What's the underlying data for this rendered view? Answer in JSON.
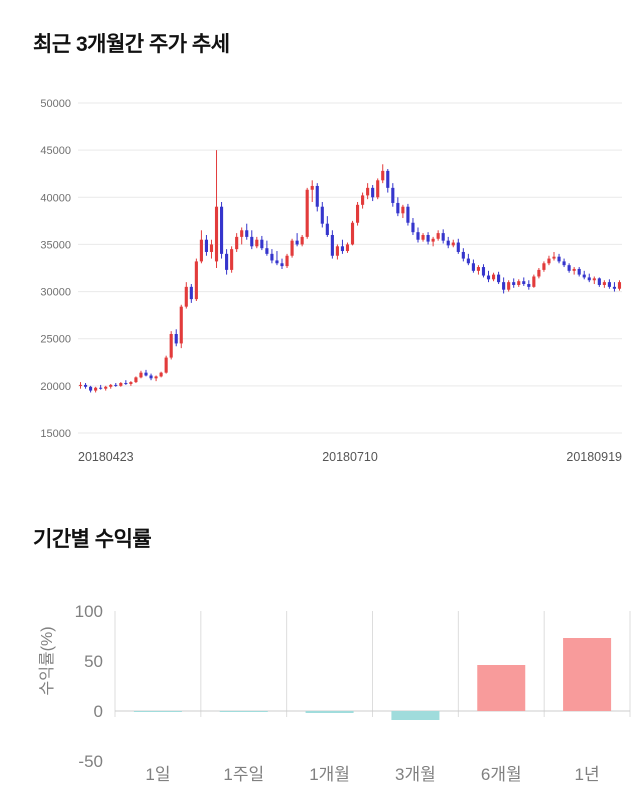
{
  "sections": {
    "price_trend": {
      "title": "최근 3개월간 주가 추세"
    },
    "period_returns": {
      "title": "기간별 수익률"
    }
  },
  "chart_data": [
    {
      "type": "candlestick",
      "title": "최근 3개월간 주가 추세",
      "x_tick_labels": [
        "20180423",
        "20180710",
        "20180919"
      ],
      "y_ticks": [
        15000,
        20000,
        25000,
        30000,
        35000,
        40000,
        45000,
        50000
      ],
      "ylim": [
        15000,
        50000
      ],
      "grid": true,
      "up_color": "#e23b3b",
      "down_color": "#3535cc",
      "ohlc_format": [
        "open",
        "high",
        "low",
        "close"
      ],
      "candles": [
        [
          20000,
          20400,
          19700,
          20100
        ],
        [
          20100,
          20300,
          19700,
          19900
        ],
        [
          19900,
          20000,
          19300,
          19500
        ],
        [
          19500,
          19900,
          19300,
          19800
        ],
        [
          19800,
          20100,
          19600,
          19700
        ],
        [
          19700,
          20000,
          19500,
          19900
        ],
        [
          19900,
          20200,
          19700,
          20100
        ],
        [
          20100,
          20300,
          19900,
          20000
        ],
        [
          20000,
          20400,
          19900,
          20300
        ],
        [
          20300,
          20600,
          20100,
          20200
        ],
        [
          20200,
          20500,
          20000,
          20400
        ],
        [
          20400,
          21000,
          20300,
          20900
        ],
        [
          20900,
          21600,
          20800,
          21400
        ],
        [
          21400,
          21700,
          21000,
          21100
        ],
        [
          21100,
          21300,
          20600,
          20800
        ],
        [
          20800,
          21100,
          20500,
          21000
        ],
        [
          21000,
          21500,
          20900,
          21400
        ],
        [
          21400,
          23200,
          21300,
          23000
        ],
        [
          23000,
          25800,
          22800,
          25500
        ],
        [
          25500,
          26000,
          24200,
          24500
        ],
        [
          24500,
          28600,
          24000,
          28400
        ],
        [
          28400,
          31000,
          28200,
          30500
        ],
        [
          30500,
          30800,
          28800,
          29200
        ],
        [
          29200,
          33500,
          29000,
          33200
        ],
        [
          33200,
          36500,
          33000,
          35500
        ],
        [
          35500,
          36000,
          33800,
          34200
        ],
        [
          34200,
          35500,
          33500,
          35000
        ],
        [
          33200,
          45000,
          32500,
          39000
        ],
        [
          39000,
          39500,
          33500,
          34000
        ],
        [
          34000,
          34500,
          31800,
          32300
        ],
        [
          32300,
          34800,
          32000,
          34500
        ],
        [
          34500,
          36200,
          34200,
          35800
        ],
        [
          35800,
          36800,
          35000,
          36500
        ],
        [
          36500,
          37200,
          35500,
          35800
        ],
        [
          35800,
          36500,
          34500,
          34800
        ],
        [
          34800,
          35800,
          34600,
          35500
        ],
        [
          35500,
          35900,
          34400,
          34600
        ],
        [
          34600,
          35400,
          33800,
          34000
        ],
        [
          34000,
          34500,
          33000,
          33300
        ],
        [
          33300,
          34300,
          32800,
          33000
        ],
        [
          33000,
          33500,
          32400,
          32700
        ],
        [
          32700,
          34000,
          32500,
          33800
        ],
        [
          33800,
          35600,
          33600,
          35400
        ],
        [
          35400,
          36200,
          34800,
          35000
        ],
        [
          35000,
          36000,
          34800,
          35800
        ],
        [
          35800,
          41000,
          35600,
          40800
        ],
        [
          40800,
          41800,
          39500,
          41200
        ],
        [
          41200,
          41500,
          38500,
          39000
        ],
        [
          39000,
          39500,
          36800,
          37200
        ],
        [
          37200,
          38000,
          35800,
          36000
        ],
        [
          36000,
          36500,
          33500,
          33800
        ],
        [
          33800,
          35000,
          33400,
          34800
        ],
        [
          34800,
          35500,
          34000,
          34300
        ],
        [
          34300,
          35200,
          34100,
          35000
        ],
        [
          35000,
          37500,
          34900,
          37300
        ],
        [
          37300,
          39500,
          37000,
          39200
        ],
        [
          39200,
          40500,
          38800,
          40200
        ],
        [
          40200,
          41500,
          39800,
          41000
        ],
        [
          41000,
          41300,
          39600,
          40000
        ],
        [
          40000,
          42000,
          39800,
          41800
        ],
        [
          41800,
          43500,
          41500,
          42800
        ],
        [
          42800,
          43000,
          40500,
          41000
        ],
        [
          41000,
          41500,
          39000,
          39400
        ],
        [
          39400,
          40000,
          38000,
          38300
        ],
        [
          38300,
          39200,
          37800,
          39000
        ],
        [
          39000,
          39300,
          37000,
          37300
        ],
        [
          37300,
          37800,
          36000,
          36300
        ],
        [
          36300,
          36800,
          35200,
          35500
        ],
        [
          35500,
          36200,
          35300,
          36000
        ],
        [
          36000,
          36300,
          35000,
          35300
        ],
        [
          35300,
          35800,
          34800,
          35600
        ],
        [
          35600,
          36500,
          35400,
          36200
        ],
        [
          36200,
          36600,
          35100,
          35400
        ],
        [
          35400,
          35800,
          34600,
          34900
        ],
        [
          34900,
          35500,
          34700,
          35200
        ],
        [
          35200,
          35600,
          34000,
          34200
        ],
        [
          34200,
          34600,
          33200,
          33500
        ],
        [
          33500,
          34000,
          32800,
          33000
        ],
        [
          33000,
          33400,
          32000,
          32200
        ],
        [
          32200,
          32800,
          31800,
          32600
        ],
        [
          32600,
          32900,
          31500,
          31700
        ],
        [
          31700,
          32200,
          31000,
          31300
        ],
        [
          31300,
          32000,
          31100,
          31800
        ],
        [
          31800,
          32100,
          30800,
          31000
        ],
        [
          31000,
          31500,
          29800,
          30200
        ],
        [
          30200,
          31200,
          30000,
          31000
        ],
        [
          31000,
          31400,
          30400,
          30700
        ],
        [
          30700,
          31300,
          30500,
          31100
        ],
        [
          31100,
          31500,
          30600,
          30800
        ],
        [
          30800,
          31200,
          30200,
          30500
        ],
        [
          30500,
          31800,
          30400,
          31600
        ],
        [
          31600,
          32500,
          31400,
          32300
        ],
        [
          32300,
          33200,
          32100,
          33000
        ],
        [
          33000,
          33800,
          32800,
          33500
        ],
        [
          33500,
          34200,
          33300,
          33700
        ],
        [
          33700,
          34000,
          33000,
          33200
        ],
        [
          33200,
          33500,
          32600,
          32800
        ],
        [
          32800,
          33000,
          32000,
          32200
        ],
        [
          32200,
          32600,
          31800,
          32400
        ],
        [
          32400,
          32600,
          31600,
          31800
        ],
        [
          31800,
          32200,
          31300,
          31500
        ],
        [
          31500,
          31900,
          31000,
          31200
        ],
        [
          31200,
          31600,
          30800,
          31400
        ],
        [
          31400,
          31500,
          30500,
          30700
        ],
        [
          30700,
          31200,
          30400,
          31000
        ],
        [
          31000,
          31300,
          30300,
          30500
        ],
        [
          30500,
          31000,
          30000,
          30300
        ],
        [
          30300,
          31200,
          30100,
          31000
        ]
      ]
    },
    {
      "type": "bar",
      "title": "기간별 수익률",
      "categories": [
        "1일",
        "1주일",
        "1개월",
        "3개월",
        "6개월",
        "1년"
      ],
      "values": [
        0,
        -1,
        -2,
        -9,
        46,
        73
      ],
      "ylabel": "수익률(%)",
      "y_ticks": [
        100,
        50,
        0,
        -50
      ],
      "ylim": [
        -50,
        100
      ],
      "grid": true,
      "legend": "none",
      "positive_color": "#f89b9b",
      "negative_color": "#a0dcdc"
    }
  ]
}
